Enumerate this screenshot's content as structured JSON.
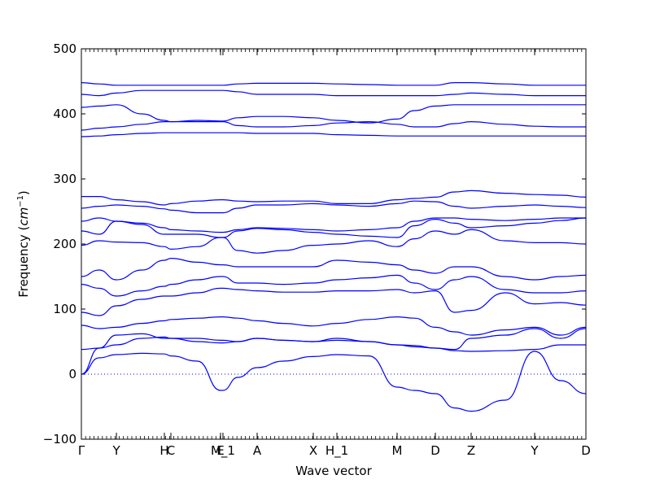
{
  "chart_data": {
    "type": "line",
    "title": "",
    "xlabel": "Wave vector",
    "ylabel_text": "Frequency (",
    "ylabel_unit": "cm",
    "ylabel_exp": "−1",
    "ylabel_close": ")",
    "ylim": [
      -100,
      500
    ],
    "yticks": [
      -100,
      0,
      100,
      200,
      300,
      400,
      500
    ],
    "xlim": [
      0,
      1
    ],
    "xticks": [
      {
        "label": "Γ",
        "x": 0.0
      },
      {
        "label": "Y",
        "x": 0.0695
      },
      {
        "label": "H",
        "x": 0.1645
      },
      {
        "label": "C",
        "x": 0.1774
      },
      {
        "label": "E",
        "x": 0.2758
      },
      {
        "label": "M_1",
        "x": 0.2806
      },
      {
        "label": "A",
        "x": 0.3484
      },
      {
        "label": "X",
        "x": 0.4597
      },
      {
        "label": "H_1",
        "x": 0.5065
      },
      {
        "label": "M",
        "x": 0.6258
      },
      {
        "label": "D",
        "x": 0.7016
      },
      {
        "label": "Z",
        "x": 0.7726
      },
      {
        "label": "Y",
        "x": 0.8984
      },
      {
        "label": "D",
        "x": 1.0
      }
    ],
    "zero_line": {
      "y": 0,
      "style": "dotted"
    },
    "grid": false,
    "line_color": "#0000ff",
    "series": [
      {
        "x": [
          0,
          0.035,
          0.0695,
          0.12,
          0.1645,
          0.1774,
          0.23,
          0.2758,
          0.2806,
          0.31,
          0.3484,
          0.4,
          0.4597,
          0.5065,
          0.57,
          0.6258,
          0.66,
          0.7016,
          0.74,
          0.7726,
          0.84,
          0.8984,
          0.95,
          1.0
        ],
        "y": [
          0,
          25,
          30,
          32,
          31,
          28,
          20,
          -25,
          -25,
          -5,
          10,
          20,
          27,
          30,
          28,
          -20,
          -25,
          -30,
          -52,
          -57,
          -40,
          35,
          -10,
          -30
        ]
      },
      {
        "x": [
          0,
          0.035,
          0.0695,
          0.12,
          0.1645,
          0.1774,
          0.23,
          0.2758,
          0.2806,
          0.31,
          0.3484,
          0.4,
          0.4597,
          0.5065,
          0.57,
          0.6258,
          0.66,
          0.7016,
          0.74,
          0.7726,
          0.84,
          0.8984,
          0.95,
          1.0
        ],
        "y": [
          0,
          40,
          60,
          62,
          55,
          55,
          55,
          52,
          52,
          50,
          55,
          52,
          50,
          55,
          50,
          45,
          42,
          40,
          36,
          35,
          36,
          38,
          45,
          45
        ]
      },
      {
        "x": [
          0,
          0.035,
          0.0695,
          0.12,
          0.1645,
          0.1774,
          0.23,
          0.2758,
          0.2806,
          0.31,
          0.3484,
          0.4,
          0.4597,
          0.5065,
          0.57,
          0.6258,
          0.66,
          0.7016,
          0.74,
          0.7726,
          0.84,
          0.8984,
          0.95,
          1.0
        ],
        "y": [
          38,
          40,
          45,
          55,
          57,
          55,
          50,
          48,
          48,
          50,
          55,
          52,
          50,
          52,
          50,
          45,
          44,
          40,
          38,
          55,
          60,
          70,
          55,
          70
        ]
      },
      {
        "x": [
          0,
          0.035,
          0.0695,
          0.12,
          0.1645,
          0.1774,
          0.23,
          0.2758,
          0.2806,
          0.31,
          0.3484,
          0.4,
          0.4597,
          0.5065,
          0.57,
          0.6258,
          0.66,
          0.7016,
          0.74,
          0.7726,
          0.84,
          0.8984,
          0.95,
          1.0
        ],
        "y": [
          75,
          70,
          72,
          78,
          82,
          84,
          86,
          88,
          88,
          86,
          82,
          78,
          74,
          78,
          84,
          88,
          86,
          72,
          65,
          60,
          68,
          72,
          60,
          72
        ]
      },
      {
        "x": [
          0,
          0.035,
          0.0695,
          0.12,
          0.1645,
          0.1774,
          0.23,
          0.2758,
          0.2806,
          0.31,
          0.3484,
          0.4,
          0.4597,
          0.5065,
          0.57,
          0.6258,
          0.66,
          0.7016,
          0.74,
          0.7726,
          0.84,
          0.8984,
          0.95,
          1.0
        ],
        "y": [
          95,
          90,
          105,
          115,
          120,
          120,
          125,
          132,
          132,
          130,
          128,
          126,
          126,
          128,
          128,
          130,
          125,
          128,
          95,
          98,
          125,
          108,
          110,
          106
        ]
      },
      {
        "x": [
          0,
          0.035,
          0.0695,
          0.12,
          0.1645,
          0.1774,
          0.23,
          0.2758,
          0.2806,
          0.31,
          0.3484,
          0.4,
          0.4597,
          0.5065,
          0.57,
          0.6258,
          0.66,
          0.7016,
          0.74,
          0.7726,
          0.84,
          0.8984,
          0.95,
          1.0
        ],
        "y": [
          138,
          132,
          120,
          128,
          135,
          138,
          145,
          150,
          150,
          140,
          140,
          138,
          140,
          145,
          148,
          152,
          140,
          130,
          145,
          150,
          130,
          125,
          125,
          128
        ]
      },
      {
        "x": [
          0,
          0.035,
          0.0695,
          0.12,
          0.1645,
          0.1774,
          0.23,
          0.2758,
          0.2806,
          0.31,
          0.3484,
          0.4,
          0.4597,
          0.5065,
          0.57,
          0.6258,
          0.66,
          0.7016,
          0.74,
          0.7726,
          0.84,
          0.8984,
          0.95,
          1.0
        ],
        "y": [
          150,
          160,
          145,
          160,
          175,
          178,
          172,
          168,
          168,
          165,
          165,
          165,
          165,
          175,
          172,
          168,
          160,
          155,
          165,
          165,
          150,
          145,
          150,
          152
        ]
      },
      {
        "x": [
          0,
          0.035,
          0.0695,
          0.12,
          0.1645,
          0.1774,
          0.23,
          0.2758,
          0.2806,
          0.31,
          0.3484,
          0.4,
          0.4597,
          0.5065,
          0.57,
          0.6258,
          0.66,
          0.7016,
          0.74,
          0.7726,
          0.84,
          0.8984,
          0.95,
          1.0
        ],
        "y": [
          198,
          205,
          203,
          202,
          196,
          192,
          196,
          210,
          210,
          190,
          186,
          190,
          198,
          200,
          205,
          196,
          208,
          220,
          215,
          222,
          205,
          202,
          202,
          200
        ]
      },
      {
        "x": [
          0,
          0.035,
          0.0695,
          0.12,
          0.1645,
          0.1774,
          0.23,
          0.2758,
          0.2806,
          0.31,
          0.3484,
          0.4,
          0.4597,
          0.5065,
          0.57,
          0.6258,
          0.66,
          0.7016,
          0.74,
          0.7726,
          0.84,
          0.8984,
          0.95,
          1.0
        ],
        "y": [
          220,
          215,
          235,
          230,
          215,
          215,
          215,
          210,
          210,
          220,
          224,
          222,
          218,
          215,
          212,
          210,
          228,
          238,
          232,
          225,
          228,
          232,
          236,
          240
        ]
      },
      {
        "x": [
          0,
          0.035,
          0.0695,
          0.12,
          0.1645,
          0.1774,
          0.23,
          0.2758,
          0.2806,
          0.31,
          0.3484,
          0.4,
          0.4597,
          0.5065,
          0.57,
          0.6258,
          0.66,
          0.7016,
          0.74,
          0.7726,
          0.84,
          0.8984,
          0.95,
          1.0
        ],
        "y": [
          235,
          240,
          235,
          232,
          225,
          222,
          220,
          218,
          218,
          222,
          225,
          224,
          222,
          220,
          222,
          225,
          235,
          240,
          240,
          238,
          236,
          238,
          240,
          240
        ]
      },
      {
        "x": [
          0,
          0.035,
          0.0695,
          0.12,
          0.1645,
          0.1774,
          0.23,
          0.2758,
          0.2806,
          0.31,
          0.3484,
          0.4,
          0.4597,
          0.5065,
          0.57,
          0.6258,
          0.66,
          0.7016,
          0.74,
          0.7726,
          0.84,
          0.8984,
          0.95,
          1.0
        ],
        "y": [
          255,
          258,
          260,
          258,
          254,
          252,
          248,
          248,
          248,
          255,
          260,
          260,
          262,
          260,
          258,
          262,
          266,
          265,
          258,
          255,
          258,
          260,
          258,
          256
        ]
      },
      {
        "x": [
          0,
          0.035,
          0.0695,
          0.12,
          0.1645,
          0.1774,
          0.23,
          0.2758,
          0.2806,
          0.31,
          0.3484,
          0.4,
          0.4597,
          0.5065,
          0.57,
          0.6258,
          0.66,
          0.7016,
          0.74,
          0.7726,
          0.84,
          0.8984,
          0.95,
          1.0
        ],
        "y": [
          273,
          273,
          268,
          265,
          260,
          262,
          266,
          268,
          268,
          266,
          265,
          266,
          266,
          262,
          262,
          268,
          270,
          272,
          280,
          282,
          278,
          276,
          275,
          272
        ]
      },
      {
        "x": [
          0,
          0.035,
          0.0695,
          0.12,
          0.1645,
          0.1774,
          0.23,
          0.2758,
          0.2806,
          0.31,
          0.3484,
          0.4,
          0.4597,
          0.5065,
          0.57,
          0.6258,
          0.66,
          0.7016,
          0.74,
          0.7726,
          0.84,
          0.8984,
          0.95,
          1.0
        ],
        "y": [
          365,
          366,
          368,
          370,
          371,
          371,
          371,
          371,
          371,
          371,
          370,
          370,
          370,
          368,
          367,
          366,
          366,
          366,
          366,
          366,
          366,
          366,
          366,
          366
        ]
      },
      {
        "x": [
          0,
          0.035,
          0.0695,
          0.12,
          0.1645,
          0.1774,
          0.23,
          0.2758,
          0.2806,
          0.31,
          0.3484,
          0.4,
          0.4597,
          0.5065,
          0.57,
          0.6258,
          0.66,
          0.7016,
          0.74,
          0.7726,
          0.84,
          0.8984,
          0.95,
          1.0
        ],
        "y": [
          375,
          378,
          380,
          384,
          388,
          388,
          388,
          388,
          388,
          382,
          380,
          380,
          382,
          386,
          388,
          384,
          380,
          380,
          385,
          388,
          384,
          381,
          380,
          380
        ]
      },
      {
        "x": [
          0,
          0.035,
          0.0695,
          0.12,
          0.1645,
          0.1774,
          0.23,
          0.2758,
          0.2806,
          0.31,
          0.3484,
          0.4,
          0.4597,
          0.5065,
          0.57,
          0.6258,
          0.66,
          0.7016,
          0.74,
          0.7726,
          0.84,
          0.8984,
          0.95,
          1.0
        ],
        "y": [
          410,
          412,
          414,
          400,
          390,
          388,
          390,
          389,
          389,
          394,
          396,
          396,
          394,
          390,
          386,
          392,
          405,
          412,
          414,
          414,
          414,
          414,
          414,
          414
        ]
      },
      {
        "x": [
          0,
          0.035,
          0.0695,
          0.12,
          0.1645,
          0.1774,
          0.23,
          0.2758,
          0.2806,
          0.31,
          0.3484,
          0.4,
          0.4597,
          0.5065,
          0.57,
          0.6258,
          0.66,
          0.7016,
          0.74,
          0.7726,
          0.84,
          0.8984,
          0.95,
          1.0
        ],
        "y": [
          430,
          428,
          432,
          436,
          436,
          436,
          436,
          436,
          436,
          434,
          430,
          430,
          430,
          428,
          428,
          428,
          428,
          428,
          430,
          432,
          430,
          428,
          428,
          428
        ]
      },
      {
        "x": [
          0,
          0.035,
          0.0695,
          0.12,
          0.1645,
          0.1774,
          0.23,
          0.2758,
          0.2806,
          0.31,
          0.3484,
          0.4,
          0.4597,
          0.5065,
          0.57,
          0.6258,
          0.66,
          0.7016,
          0.74,
          0.7726,
          0.84,
          0.8984,
          0.95,
          1.0
        ],
        "y": [
          448,
          446,
          444,
          444,
          444,
          444,
          444,
          444,
          444,
          446,
          447,
          447,
          447,
          446,
          445,
          444,
          444,
          444,
          448,
          448,
          446,
          444,
          444,
          444
        ]
      }
    ]
  }
}
